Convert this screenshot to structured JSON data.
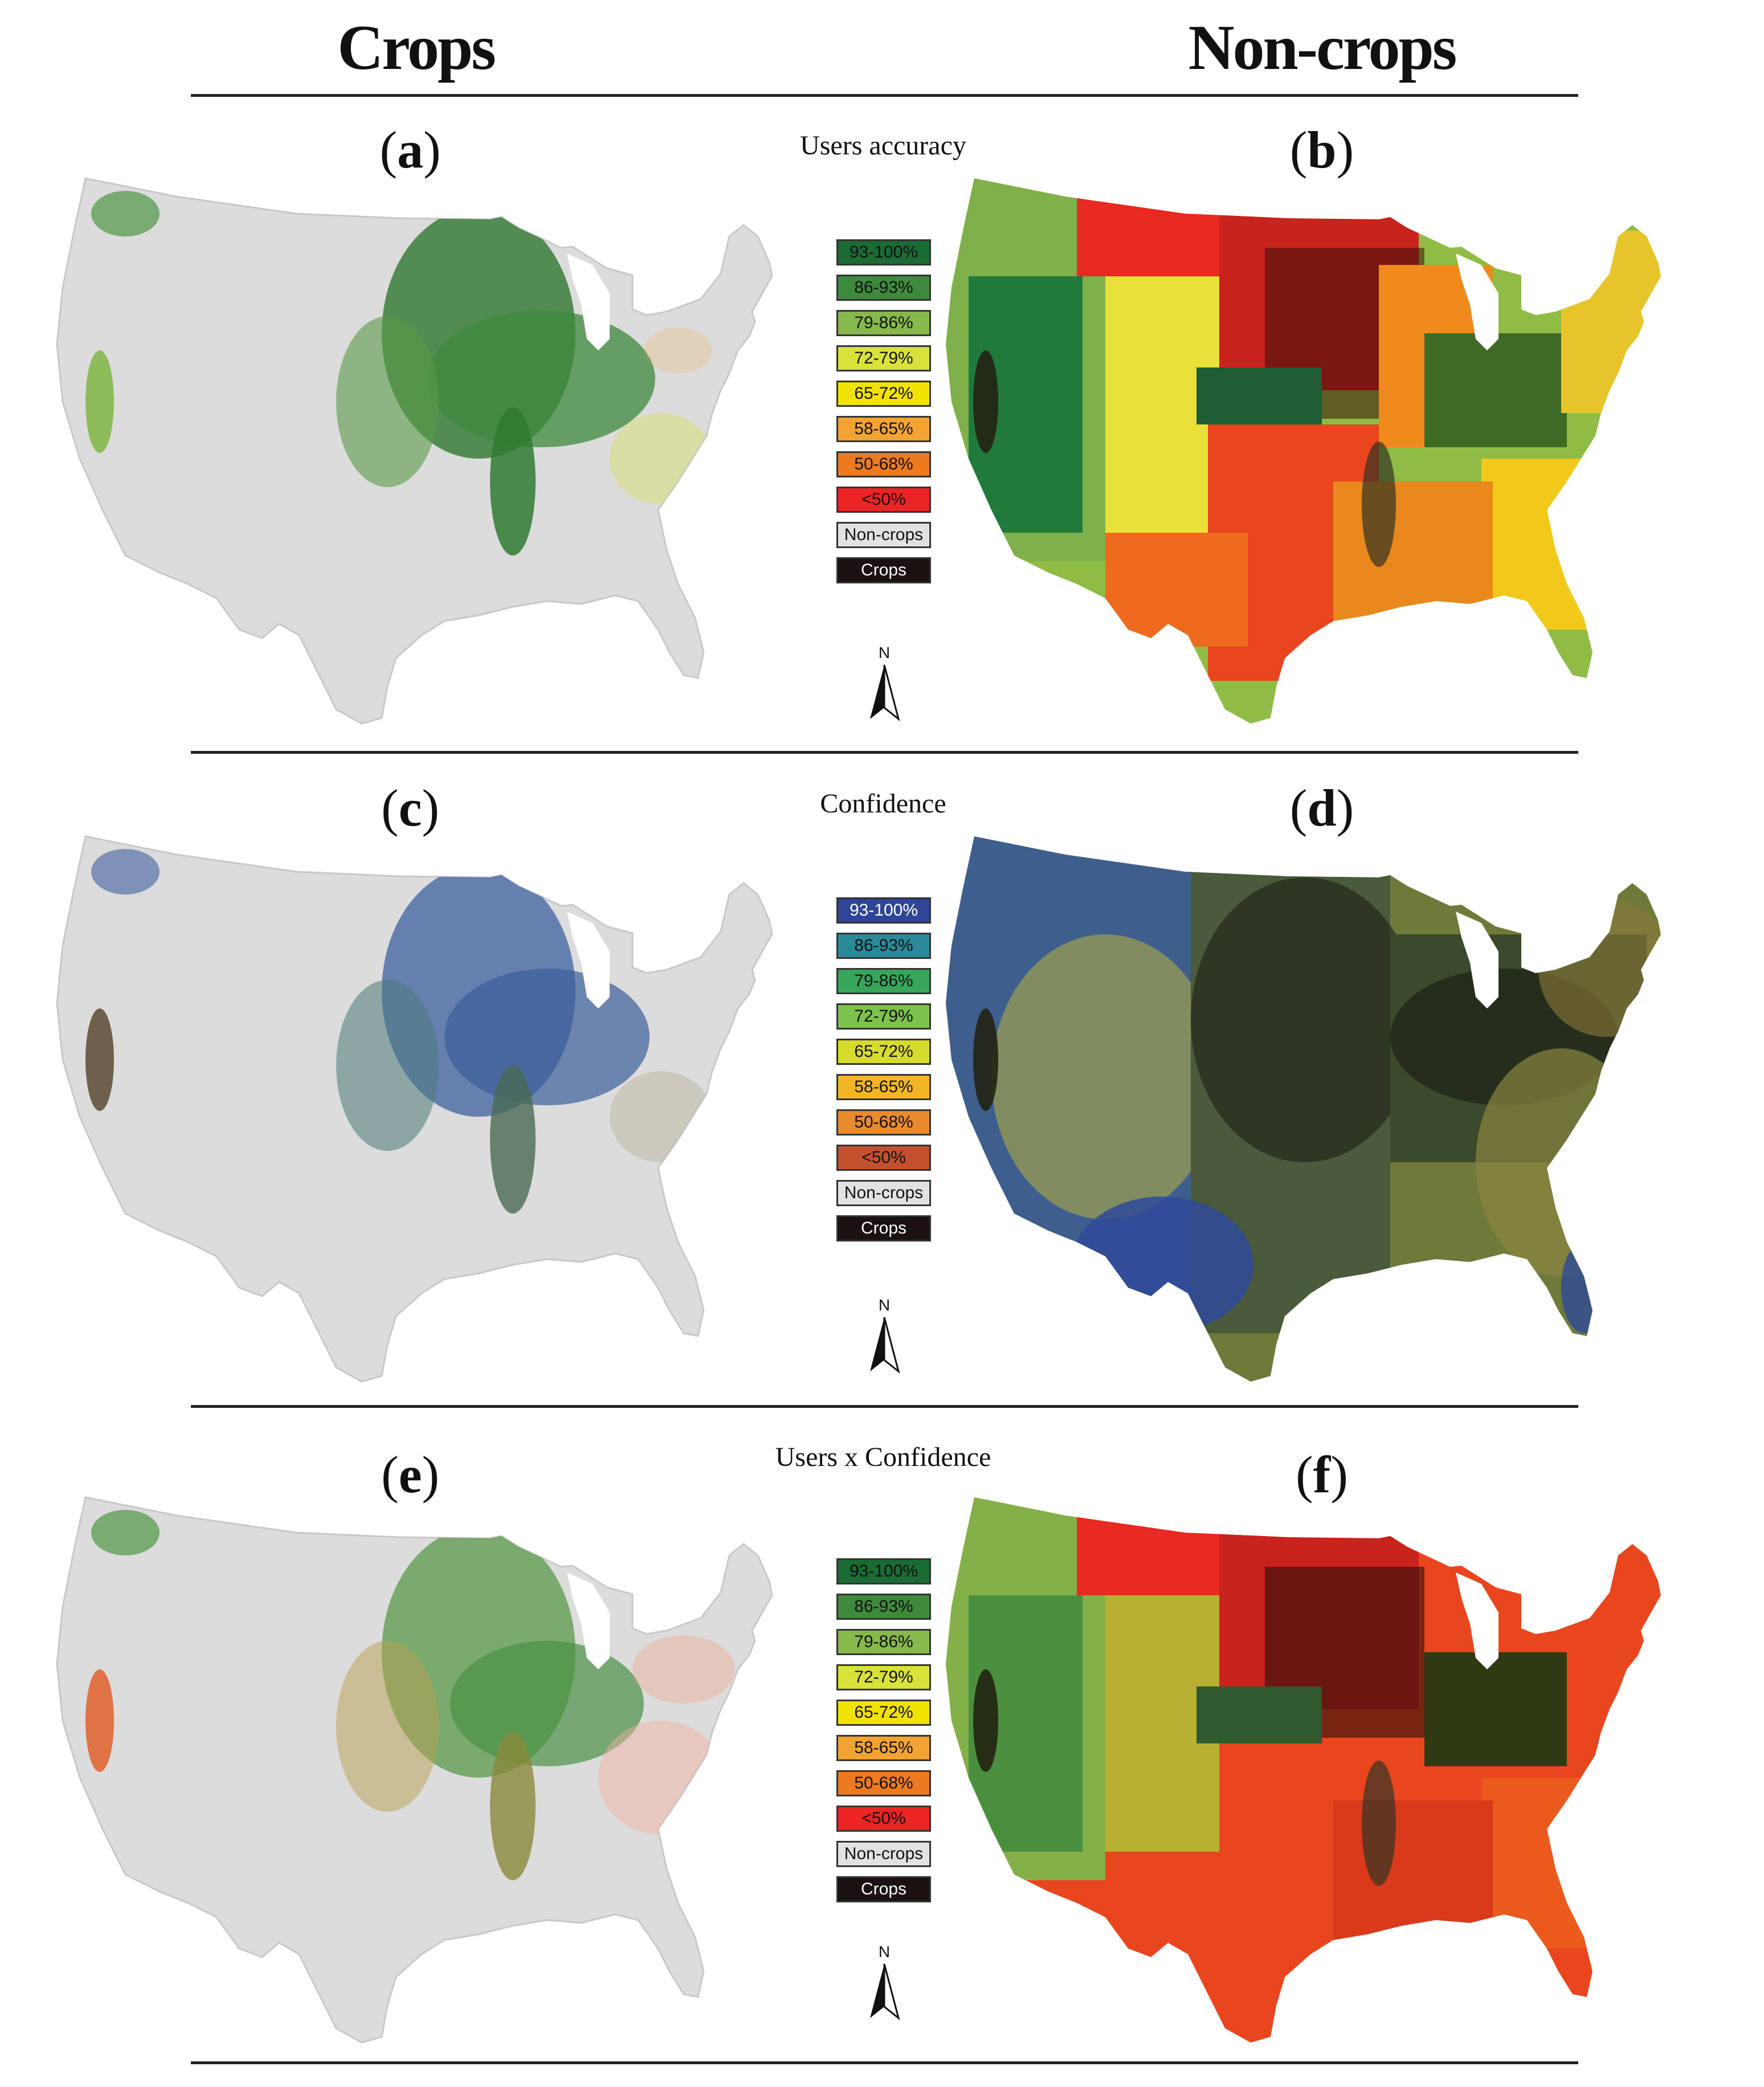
{
  "columns": {
    "left": "Crops",
    "right": "Non-crops"
  },
  "rows": [
    {
      "title": "Users accuracy",
      "left_label": "a",
      "right_label": "b",
      "legend": [
        {
          "label": "93-100%",
          "color": "#1b6b34"
        },
        {
          "label": "86-93%",
          "color": "#3e8a3c"
        },
        {
          "label": "79-86%",
          "color": "#86b84b"
        },
        {
          "label": "72-79%",
          "color": "#d8e23b"
        },
        {
          "label": "65-72%",
          "color": "#f2e200"
        },
        {
          "label": "58-65%",
          "color": "#f3a332"
        },
        {
          "label": "50-68%",
          "color": "#ee7a20"
        },
        {
          "label": "<50%",
          "color": "#ec2424"
        },
        {
          "label": "Non-crops",
          "color": "#e2e2e2"
        },
        {
          "label": "Crops",
          "color": "#1a1110"
        }
      ]
    },
    {
      "title": "Confidence",
      "left_label": "c",
      "right_label": "d",
      "legend": [
        {
          "label": "93-100%",
          "color": "#2f4598"
        },
        {
          "label": "86-93%",
          "color": "#2a8a9a"
        },
        {
          "label": "79-86%",
          "color": "#37a55a"
        },
        {
          "label": "72-79%",
          "color": "#7dc24c"
        },
        {
          "label": "65-72%",
          "color": "#d7db2c"
        },
        {
          "label": "58-65%",
          "color": "#f4b524"
        },
        {
          "label": "50-68%",
          "color": "#e98a2c"
        },
        {
          "label": "<50%",
          "color": "#c3502d"
        },
        {
          "label": "Non-crops",
          "color": "#e2e2e2"
        },
        {
          "label": "Crops",
          "color": "#1a1110"
        }
      ]
    },
    {
      "title": "Users x Confidence",
      "left_label": "e",
      "right_label": "f",
      "legend": [
        {
          "label": "93-100%",
          "color": "#1b6b34"
        },
        {
          "label": "86-93%",
          "color": "#3e8a3c"
        },
        {
          "label": "79-86%",
          "color": "#86b84b"
        },
        {
          "label": "72-79%",
          "color": "#d8e23b"
        },
        {
          "label": "65-72%",
          "color": "#f2e200"
        },
        {
          "label": "58-65%",
          "color": "#f3a332"
        },
        {
          "label": "50-68%",
          "color": "#ee7a20"
        },
        {
          "label": "<50%",
          "color": "#ec2424"
        },
        {
          "label": "Non-crops",
          "color": "#e2e2e2"
        },
        {
          "label": "Crops",
          "color": "#1a1110"
        }
      ]
    }
  ],
  "north_arrow": "N",
  "icons": {
    "north": "north-arrow-icon"
  }
}
